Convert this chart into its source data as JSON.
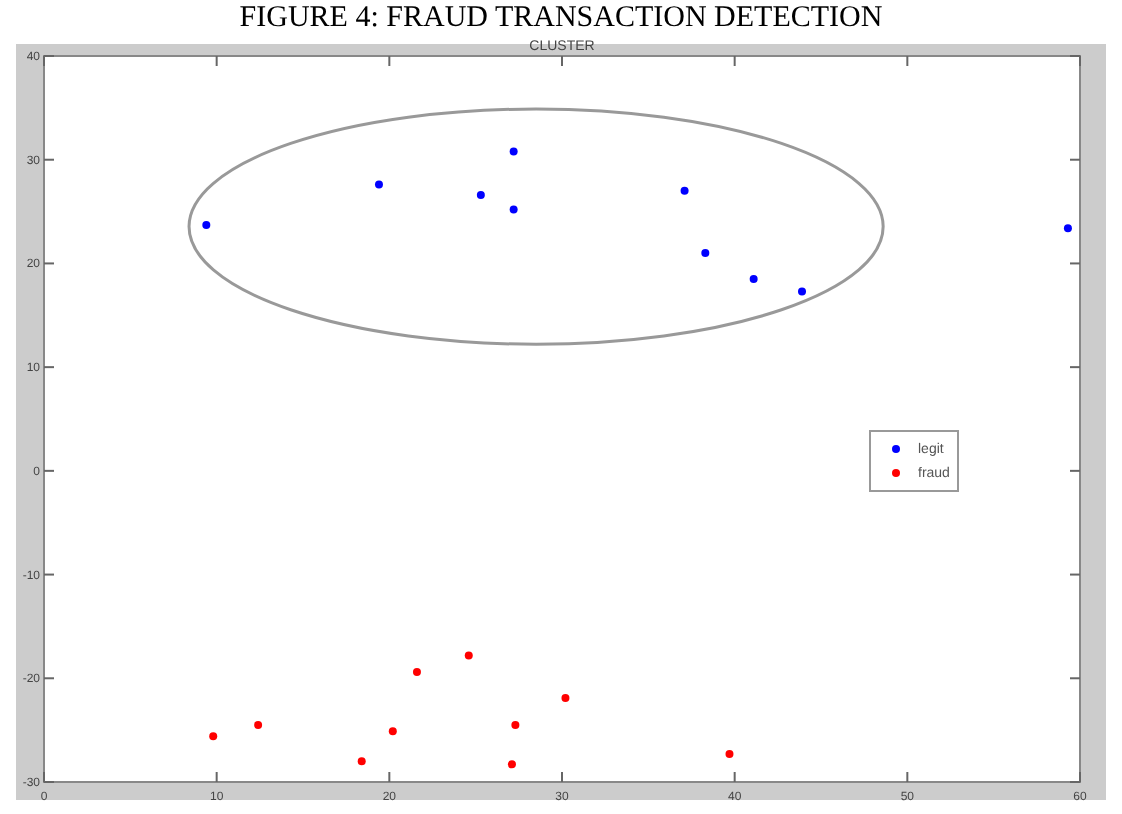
{
  "chart_data": {
    "type": "scatter",
    "title": "FIGURE 4: FRAUD TRANSACTION DETECTION",
    "subtitle": "CLUSTER",
    "xlim": [
      0,
      60
    ],
    "xticks": [
      0,
      10,
      20,
      30,
      40,
      50,
      60
    ],
    "ylim": [
      -30,
      40
    ],
    "yticks": [
      -30,
      -20,
      -10,
      0,
      10,
      20,
      30,
      40
    ],
    "grid": false,
    "legend": "right",
    "marker": "circle",
    "series": [
      {
        "name": "legit",
        "color": "#0000ff",
        "x": [
          9.4,
          19.4,
          25.3,
          27.2,
          27.2,
          37.1,
          38.3,
          41.1,
          43.9,
          59.3
        ],
        "values": [
          23.7,
          27.6,
          26.6,
          30.8,
          25.2,
          27.0,
          21.0,
          18.5,
          17.3,
          23.4
        ]
      },
      {
        "name": "fraud",
        "color": "#ff0000",
        "x": [
          9.8,
          12.4,
          18.4,
          20.2,
          21.6,
          24.6,
          27.1,
          27.3,
          30.2,
          39.7
        ],
        "values": [
          -25.6,
          -24.5,
          -28.0,
          -25.1,
          -19.4,
          -17.8,
          -28.3,
          -24.5,
          -21.9,
          -27.3
        ]
      }
    ]
  }
}
